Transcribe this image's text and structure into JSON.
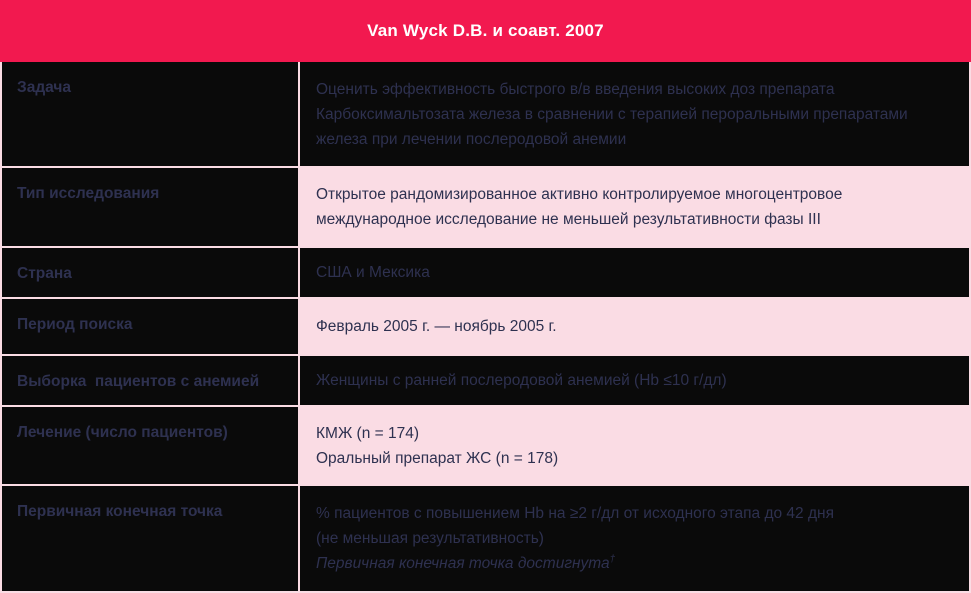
{
  "header": {
    "title": "Van Wyck D.B. и соавт. 2007"
  },
  "colors": {
    "accent_crimson": "#f2194f",
    "light_pink": "#fadce4",
    "dark_cell": "#0a0a0a",
    "text_navy": "#2e3150",
    "header_text": "#ffffff"
  },
  "table": {
    "rows": [
      {
        "label": "Задача",
        "lines": [
          "Оценить эффективность быстрого в/в введения высоких доз препарата",
          "Карбоксимальтозата железа в сравнении с терапией пероральными препаратами",
          "железа при лечении послеродовой анемии"
        ]
      },
      {
        "label": "Тип исследования",
        "lines": [
          "Открытое рандомизированное активно контролируемое многоцентровое",
          "международное исследование не меньшей результативности фазы III"
        ]
      },
      {
        "label": "Страна",
        "lines": [
          "США и Мексика"
        ]
      },
      {
        "label": "Период поиска",
        "lines": [
          "Февраль 2005 г. — ноябрь 2005 г."
        ]
      },
      {
        "label": "Выборка  пациентов с анемией",
        "lines": [
          "Женщины с ранней послеродовой анемией (Hb ≤10 г/дл)"
        ]
      },
      {
        "label": "Лечение (число пациентов)",
        "lines": [
          "КМЖ (n = 174)",
          "Оральный препарат ЖС (n = 178)"
        ]
      },
      {
        "label": "Первичная конечная точка",
        "lines": [
          "% пациентов с повышением Hb на ≥2 г/дл от исходного этапа до 42 дня",
          "(не меньшая результативность)"
        ],
        "italic_line": "Первичная конечная точка достигнута",
        "footnote_mark": "†"
      }
    ]
  }
}
